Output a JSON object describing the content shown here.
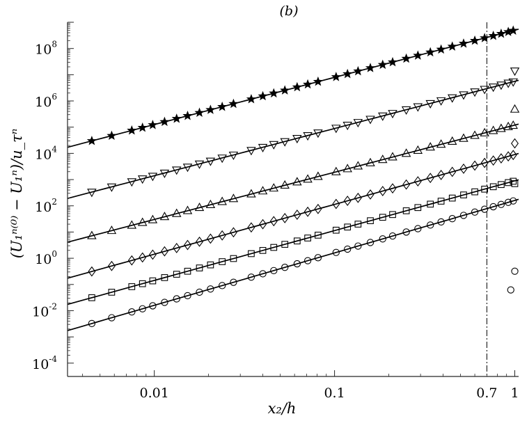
{
  "chart_data": {
    "type": "scatter",
    "title": "(b)",
    "xlabel": "x₂/h",
    "ylabel": "(U₁ⁿ⁽⁰⁾ − U₁ⁿ)/u_τⁿ",
    "xscale": "log",
    "yscale": "log",
    "xlim": [
      0.0033,
      1.05
    ],
    "ylim": [
      3.1e-05,
      1000000000
    ],
    "x_ticks": [
      {
        "value": 0.01,
        "label": "0.01"
      },
      {
        "value": 0.1,
        "label": "0.1"
      },
      {
        "value": 0.7,
        "label": "0.7"
      },
      {
        "value": 1,
        "label": "1"
      }
    ],
    "y_ticks": [
      {
        "value": 0.0001,
        "base": "10",
        "exp": "-4"
      },
      {
        "value": 0.01,
        "base": "10",
        "exp": "-2"
      },
      {
        "value": 1,
        "base": "10",
        "exp": "0"
      },
      {
        "value": 100,
        "base": "10",
        "exp": "2"
      },
      {
        "value": 10000,
        "base": "10",
        "exp": "4"
      },
      {
        "value": 1000000,
        "base": "10",
        "exp": "6"
      },
      {
        "value": 100000000,
        "base": "10",
        "exp": "8"
      }
    ],
    "vline": {
      "x": 0.7,
      "style": "dash-dot"
    },
    "grid": false,
    "legend": "none",
    "series": [
      {
        "marker": "circle",
        "fit": {
          "a": 160,
          "b": 2
        },
        "outliers": [
          [
            0.95,
            0.062
          ],
          [
            1.0,
            0.32
          ]
        ]
      },
      {
        "marker": "square",
        "fit": {
          "a": 900,
          "b": 1.9
        },
        "outliers": [
          [
            1.0,
            700
          ]
        ]
      },
      {
        "marker": "diamond",
        "fit": {
          "a": 9000,
          "b": 1.9
        },
        "outliers": [
          [
            1.0,
            24000
          ]
        ]
      },
      {
        "marker": "triangle-up",
        "fit": {
          "a": 120000,
          "b": 1.8
        },
        "outliers": [
          [
            1.0,
            480000
          ]
        ]
      },
      {
        "marker": "triangle-down",
        "fit": {
          "a": 5600000,
          "b": 1.8
        },
        "outliers": [
          [
            1.0,
            14000000
          ]
        ]
      },
      {
        "marker": "star",
        "fit": {
          "a": 500000000,
          "b": 1.8
        },
        "outliers": []
      }
    ],
    "x_points": [
      0.0045,
      0.0058,
      0.0075,
      0.0086,
      0.0098,
      0.0114,
      0.0133,
      0.0153,
      0.0178,
      0.0205,
      0.0238,
      0.0275,
      0.0345,
      0.04,
      0.046,
      0.053,
      0.062,
      0.071,
      0.081,
      0.102,
      0.118,
      0.135,
      0.158,
      0.185,
      0.21,
      0.25,
      0.29,
      0.34,
      0.39,
      0.45,
      0.52,
      0.6,
      0.68,
      0.76,
      0.84,
      0.92,
      0.98
    ]
  }
}
